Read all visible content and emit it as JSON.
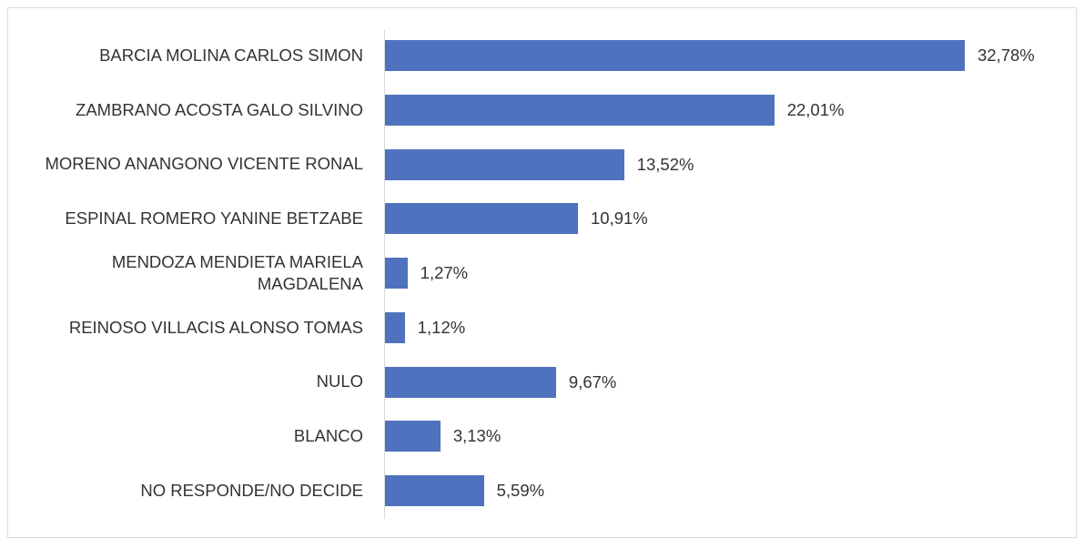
{
  "chart_data": {
    "type": "barh",
    "categories": [
      "BARCIA MOLINA CARLOS SIMON",
      "ZAMBRANO ACOSTA GALO SILVINO",
      "MORENO ANANGONO VICENTE RONAL",
      "ESPINAL ROMERO YANINE BETZABE",
      "MENDOZA MENDIETA MARIELA MAGDALENA",
      "REINOSO VILLACIS ALONSO TOMAS",
      "NULO",
      "BLANCO",
      "NO RESPONDE/NO DECIDE"
    ],
    "values": [
      32.78,
      22.01,
      13.52,
      10.91,
      1.27,
      1.12,
      9.67,
      3.13,
      5.59
    ],
    "value_labels": [
      "32,78%",
      "22,01%",
      "13,52%",
      "10,91%",
      "1,27%",
      "1,12%",
      "9,67%",
      "3,13%",
      "5,59%"
    ],
    "color": "#4f72be"
  }
}
